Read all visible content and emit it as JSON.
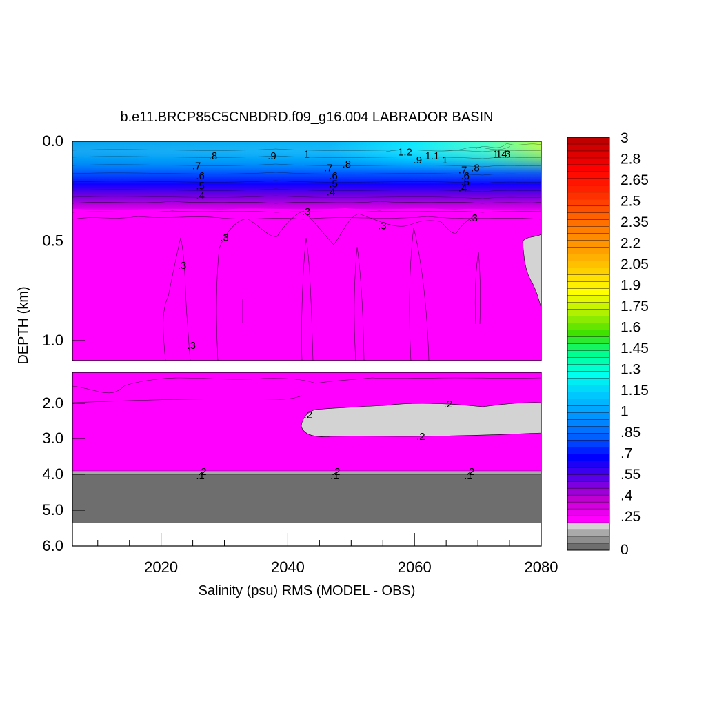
{
  "chart_data": {
    "type": "heatmap",
    "title": "b.e11.BRCP85C5CNBDRD.f09_g16.004 LABRADOR BASIN",
    "xlabel": "Salinity (psu) RMS (MODEL - OBS)",
    "ylabel": "DEPTH (km)",
    "xlim": [
      2006,
      2080
    ],
    "x_ticks": [
      "2020",
      "2040",
      "2060",
      "2080"
    ],
    "upper_panel": {
      "ylim": [
        0.0,
        1.1
      ],
      "y_ticks": [
        "0.0",
        "0.5",
        "1.0"
      ]
    },
    "lower_panel": {
      "ylim": [
        1.0,
        6.0
      ],
      "y_ticks": [
        "2.0",
        "3.0",
        "4.0",
        "5.0",
        "6.0"
      ]
    },
    "colorbar": {
      "labels": [
        "3",
        "2.8",
        "2.65",
        "2.5",
        "2.35",
        "2.2",
        "2.05",
        "1.9",
        "1.75",
        "1.6",
        "1.45",
        "1.3",
        "1.15",
        "1",
        ".85",
        ".7",
        ".55",
        ".4",
        ".25",
        "0"
      ],
      "stops": [
        {
          "value": 0.0,
          "color": "#6e6e6e"
        },
        {
          "value": 0.2,
          "color": "#d3d3d3"
        },
        {
          "value": 0.25,
          "color": "#ff00ff"
        },
        {
          "value": 0.4,
          "color": "#c000d0"
        },
        {
          "value": 0.55,
          "color": "#5a00e8"
        },
        {
          "value": 0.7,
          "color": "#0000ff"
        },
        {
          "value": 0.85,
          "color": "#0060ff"
        },
        {
          "value": 1.0,
          "color": "#0096ff"
        },
        {
          "value": 1.15,
          "color": "#00c8ff"
        },
        {
          "value": 1.3,
          "color": "#00ffee"
        },
        {
          "value": 1.45,
          "color": "#00ff90"
        },
        {
          "value": 1.6,
          "color": "#40e000"
        },
        {
          "value": 1.75,
          "color": "#b0f000"
        },
        {
          "value": 1.9,
          "color": "#ffff00"
        },
        {
          "value": 2.05,
          "color": "#ffd000"
        },
        {
          "value": 2.2,
          "color": "#ffa000"
        },
        {
          "value": 2.35,
          "color": "#ff8000"
        },
        {
          "value": 2.5,
          "color": "#ff5000"
        },
        {
          "value": 2.65,
          "color": "#ff2000"
        },
        {
          "value": 2.8,
          "color": "#ff0000"
        },
        {
          "value": 3.0,
          "color": "#c00000"
        }
      ]
    },
    "regions": {
      "surface_max": 1.4,
      "surface_layer_km": [
        0.0,
        0.3
      ],
      "interior_value": 0.3,
      "deep_value": 0.2,
      "low_patch": {
        "x": [
          2043,
          2080
        ],
        "depth_km": [
          2.0,
          2.9
        ],
        "value": 0.2
      },
      "bottom_band": {
        "depth_km": [
          3.9,
          5.35
        ],
        "value": 0.1
      },
      "right_edge_patch": {
        "x": [
          2077,
          2080
        ],
        "depth_km": [
          0.45,
          0.85
        ],
        "value": 0.2
      }
    },
    "contour_labels": [
      {
        "text": ".8",
        "x": 2028.2,
        "y": 0.07
      },
      {
        "text": ".9",
        "x": 2037.5,
        "y": 0.07
      },
      {
        "text": "1",
        "x": 2043.0,
        "y": 0.06
      },
      {
        "text": "1.2",
        "x": 2058.5,
        "y": 0.05
      },
      {
        "text": ".9",
        "x": 2060.5,
        "y": 0.09
      },
      {
        "text": "1.1",
        "x": 2062.8,
        "y": 0.07
      },
      {
        "text": "1",
        "x": 2064.8,
        "y": 0.09
      },
      {
        "text": "1.4",
        "x": 2073.5,
        "y": 0.06
      },
      {
        "text": "1.3",
        "x": 2074.0,
        "y": 0.06
      },
      {
        "text": ".7",
        "x": 2025.6,
        "y": 0.12
      },
      {
        "text": ".6",
        "x": 2026.2,
        "y": 0.17
      },
      {
        "text": ".5",
        "x": 2026.2,
        "y": 0.22
      },
      {
        "text": ".4",
        "x": 2026.2,
        "y": 0.27
      },
      {
        "text": ".7",
        "x": 2046.4,
        "y": 0.13
      },
      {
        "text": ".8",
        "x": 2049.3,
        "y": 0.11
      },
      {
        "text": ".6",
        "x": 2047.2,
        "y": 0.17
      },
      {
        "text": ".5",
        "x": 2047.2,
        "y": 0.21
      },
      {
        "text": ".4",
        "x": 2046.8,
        "y": 0.25
      },
      {
        "text": ".7",
        "x": 2067.6,
        "y": 0.14
      },
      {
        "text": ".8",
        "x": 2069.6,
        "y": 0.13
      },
      {
        "text": ".6",
        "x": 2068.0,
        "y": 0.17
      },
      {
        "text": ".5",
        "x": 2068.0,
        "y": 0.2
      },
      {
        "text": ".4",
        "x": 2067.6,
        "y": 0.23
      },
      {
        "text": ".3",
        "x": 2042.9,
        "y": 0.35
      },
      {
        "text": ".3",
        "x": 2054.9,
        "y": 0.42
      },
      {
        "text": ".3",
        "x": 2069.3,
        "y": 0.38
      },
      {
        "text": ".3",
        "x": 2030.0,
        "y": 0.48
      },
      {
        "text": ".3",
        "x": 2023.3,
        "y": 0.62
      },
      {
        "text": ".3",
        "x": 2024.8,
        "y": 1.02
      },
      {
        "text": ".2",
        "x": 2065.3,
        "y": 2.0
      },
      {
        "text": ".2",
        "x": 2043.2,
        "y": 2.3
      },
      {
        "text": ".2",
        "x": 2061.0,
        "y": 2.92
      },
      {
        "text": ".2",
        "x": 2026.5,
        "y": 3.9
      },
      {
        "text": ".1",
        "x": 2026.2,
        "y": 4.02
      },
      {
        "text": ".2",
        "x": 2047.6,
        "y": 3.9
      },
      {
        "text": ".1",
        "x": 2047.4,
        "y": 4.02
      },
      {
        "text": ".2",
        "x": 2068.8,
        "y": 3.9
      },
      {
        "text": ".1",
        "x": 2068.5,
        "y": 4.02
      }
    ]
  }
}
